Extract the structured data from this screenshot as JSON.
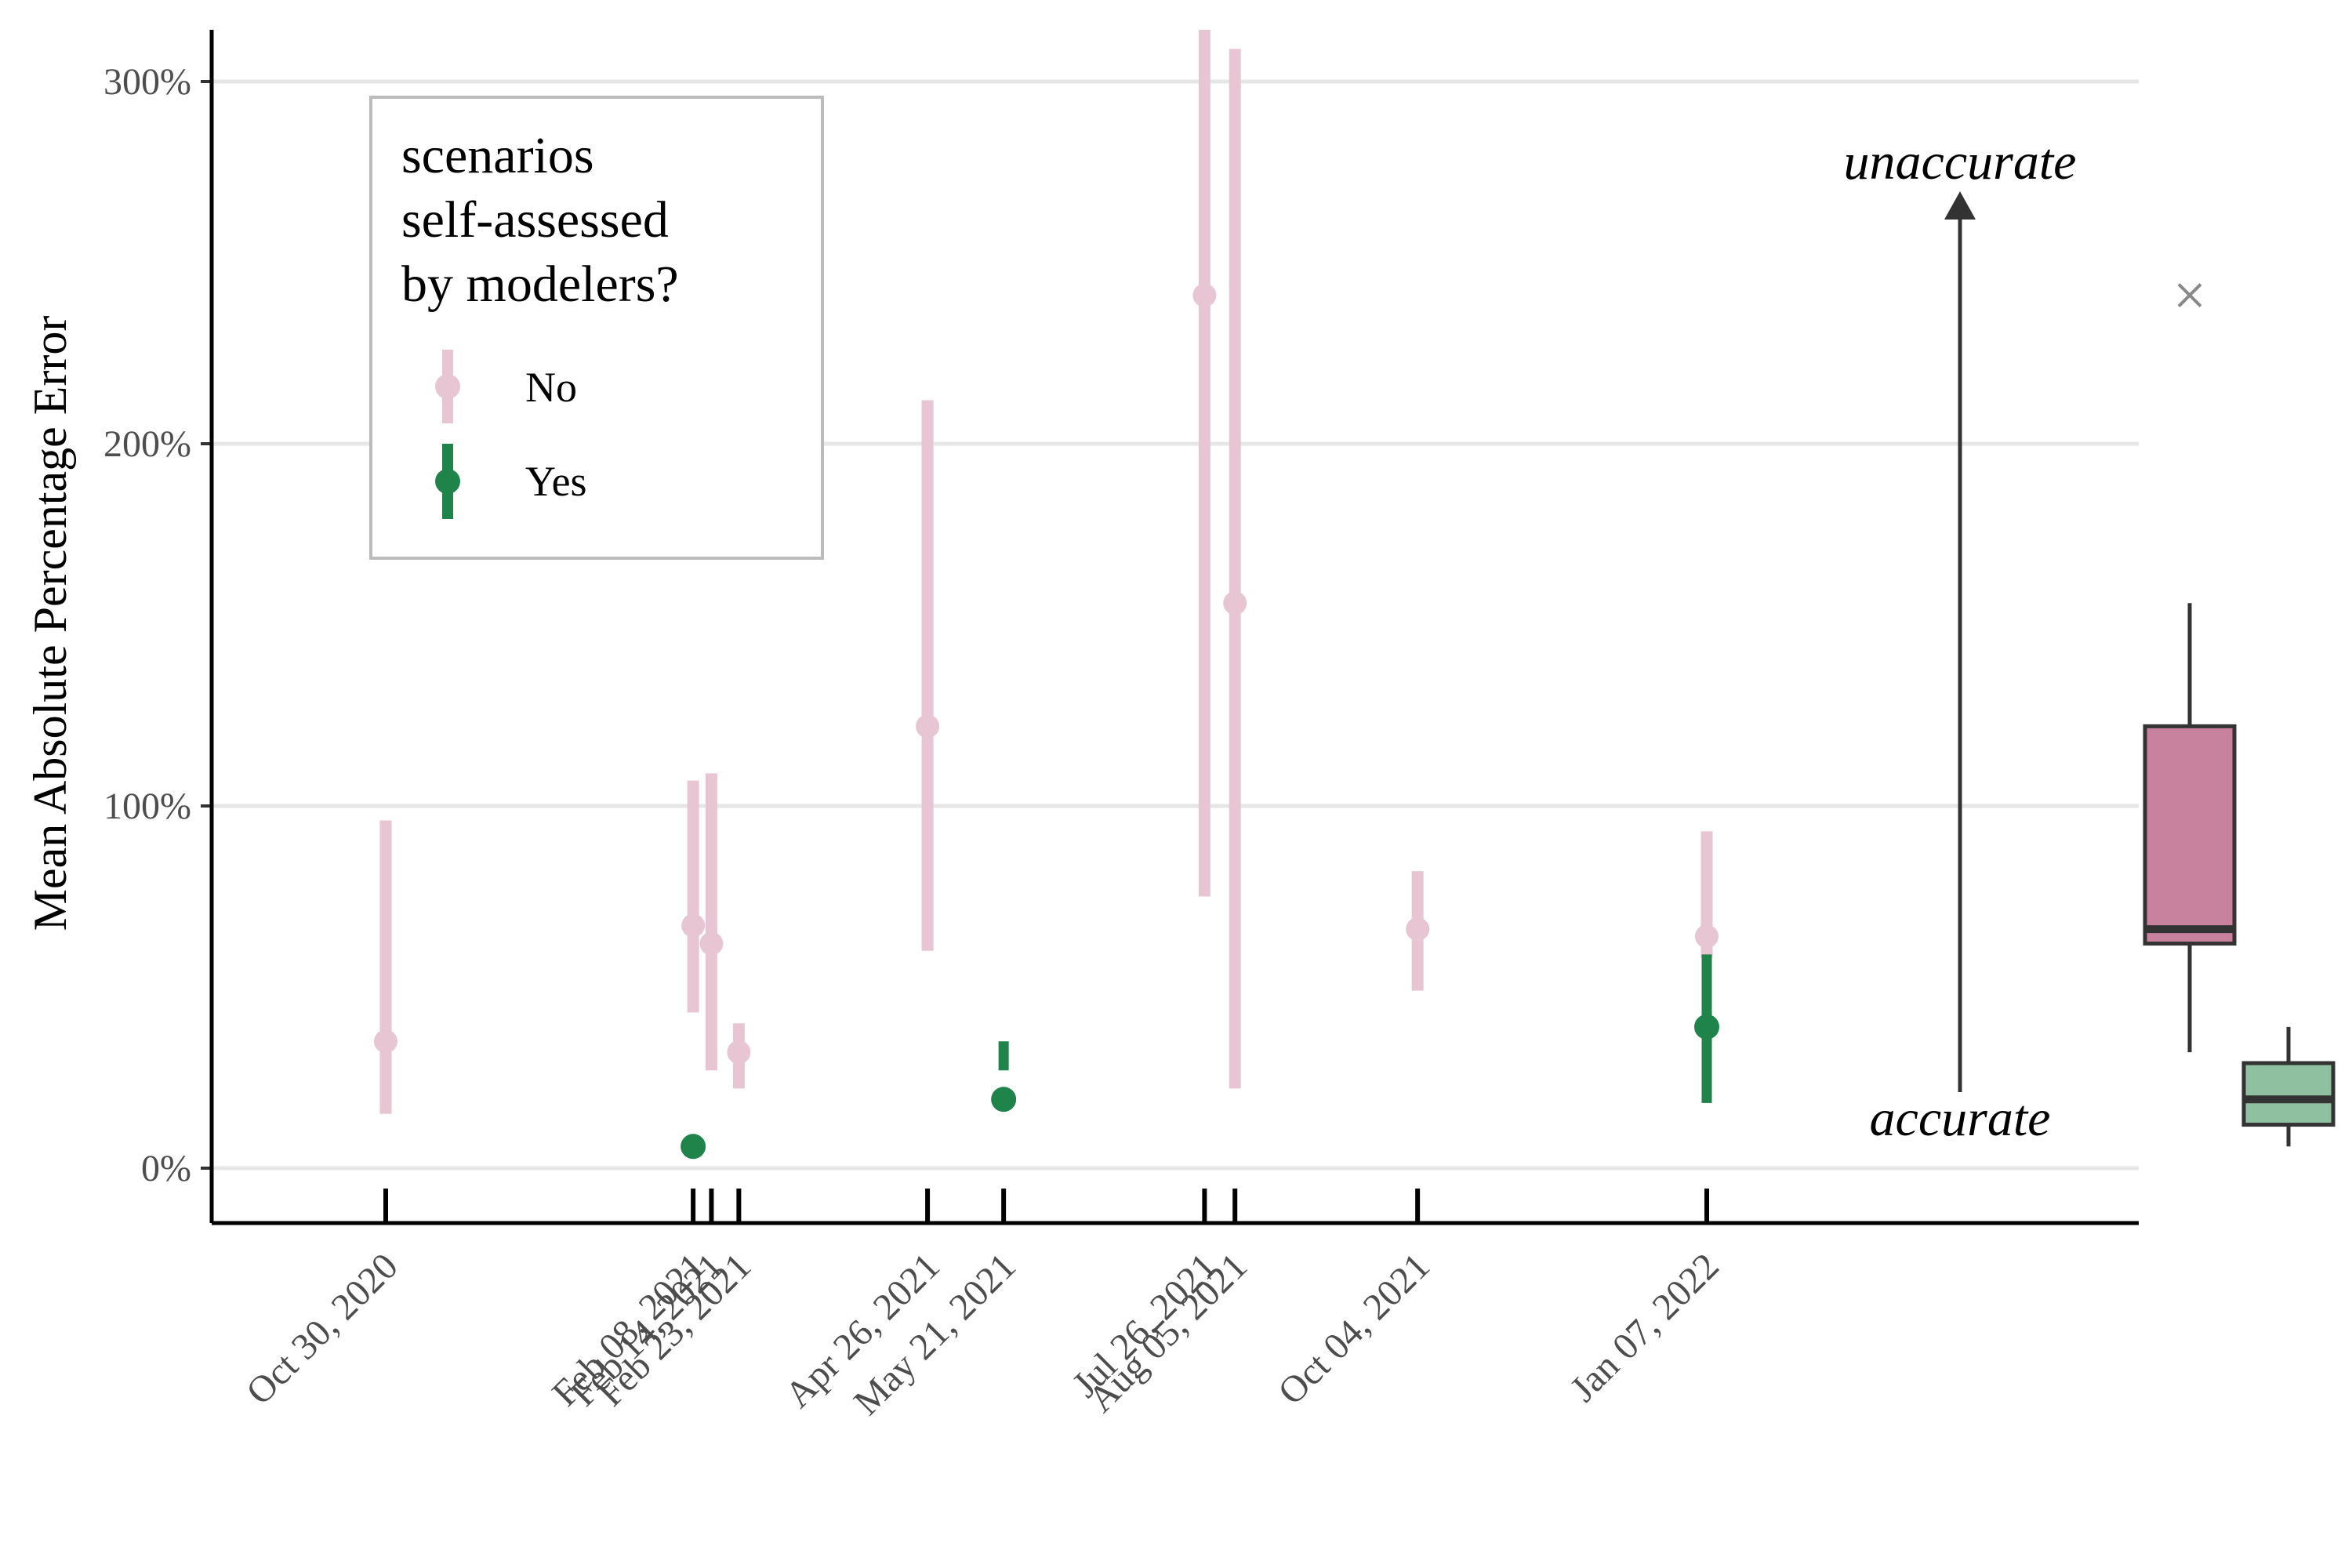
{
  "chart_data": {
    "type": "scatter",
    "ylabel": "Mean Absolute Percentage Error",
    "xlabel": "",
    "ylim": [
      -15,
      315
    ],
    "y_ticks": [
      0,
      100,
      200,
      300
    ],
    "y_tick_labels": [
      "0%",
      "100%",
      "200%",
      "300%"
    ],
    "grid": "horizontal major gridlines",
    "x_dates": [
      "2020-10-30",
      "2021-02-08",
      "2021-02-14",
      "2021-02-23",
      "2021-04-26",
      "2021-05-21",
      "2021-07-26",
      "2021-08-05",
      "2021-10-04",
      "2022-01-07"
    ],
    "x_tick_labels": [
      "Oct 30, 2020",
      "Feb 08, 2021",
      "Feb 14, 2021",
      "Feb 23, 2021",
      "Apr 26, 2021",
      "May 21, 2021",
      "Jul 26, 2021",
      "Aug 05, 2021",
      "Oct 04, 2021",
      "Jan 07, 2022"
    ],
    "legend": {
      "title_lines": [
        "scenarios",
        "self-assessed",
        "by modelers?"
      ],
      "placement": "top-left",
      "entries": [
        {
          "label": "No",
          "color": "#E8C5D3"
        },
        {
          "label": "Yes",
          "color": "#1F8449"
        }
      ]
    },
    "series": [
      {
        "name": "No",
        "color": "#E8C5D3",
        "points": [
          {
            "date": "2020-10-30",
            "y": 35,
            "low": 15,
            "high": 96
          },
          {
            "date": "2021-02-08",
            "y": 67,
            "low": 43,
            "high": 107
          },
          {
            "date": "2021-02-14",
            "y": 62,
            "low": 27,
            "high": 109
          },
          {
            "date": "2021-02-23",
            "y": 32,
            "low": 22,
            "high": 40
          },
          {
            "date": "2021-04-26",
            "y": 122,
            "low": 60,
            "high": 212
          },
          {
            "date": "2021-07-26",
            "y": 241,
            "low": 75,
            "high": 315
          },
          {
            "date": "2021-08-05",
            "y": 156,
            "low": 22,
            "high": 309
          },
          {
            "date": "2021-10-04",
            "y": 66,
            "low": 49,
            "high": 82
          },
          {
            "date": "2022-01-07",
            "y": 64,
            "low": 58,
            "high": 93
          }
        ]
      },
      {
        "name": "Yes",
        "color": "#1F8449",
        "points": [
          {
            "date": "2021-02-08",
            "y": 6,
            "low": null,
            "high": null
          },
          {
            "date": "2021-05-21",
            "y": 19,
            "low": 27,
            "high": 35
          },
          {
            "date": "2022-01-07",
            "y": 39,
            "low": 18,
            "high": 59
          }
        ]
      }
    ],
    "boxplots": [
      {
        "group": "No",
        "fill": "#C9829E",
        "q1": 62,
        "median": 66,
        "q3": 122,
        "whisker_low": 32,
        "whisker_high": 156,
        "outliers": [
          241
        ]
      },
      {
        "group": "Yes",
        "fill": "#8FC1A1",
        "q1": 12,
        "median": 19,
        "q3": 29,
        "whisker_low": 6,
        "whisker_high": 39,
        "outliers": []
      }
    ],
    "annotations": {
      "top": "unaccurate",
      "bottom": "accurate"
    }
  }
}
